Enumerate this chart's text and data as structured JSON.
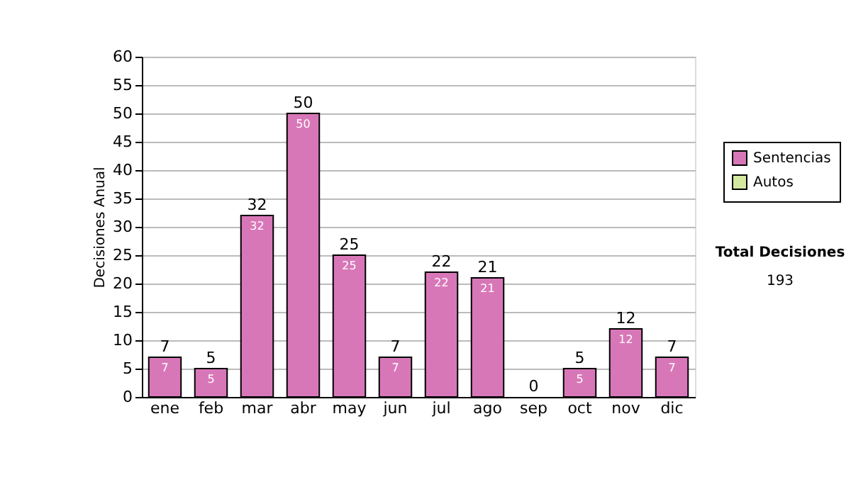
{
  "chart_data": {
    "type": "bar",
    "stacked": true,
    "ylabel": "Decisiones Anual",
    "categories": [
      "ene",
      "feb",
      "mar",
      "abr",
      "may",
      "jun",
      "jul",
      "ago",
      "sep",
      "oct",
      "nov",
      "dic"
    ],
    "series": [
      {
        "name": "Sentencias",
        "color": "#d877b8",
        "values": [
          7,
          5,
          32,
          50,
          25,
          7,
          22,
          21,
          0,
          5,
          12,
          7
        ],
        "value_labels": [
          "7",
          "5",
          "32",
          "50",
          "25",
          "7",
          "22",
          "21",
          null,
          "5",
          "12",
          "7"
        ]
      },
      {
        "name": "Autos",
        "color": "#d4e8a0",
        "values": [
          0,
          0,
          0,
          0,
          0,
          0,
          0,
          0,
          0,
          0,
          0,
          0
        ],
        "value_labels": [
          null,
          null,
          null,
          null,
          null,
          null,
          null,
          null,
          null,
          null,
          null,
          null
        ]
      }
    ],
    "totals": [
      "7",
      "5",
      "32",
      "50",
      "25",
      "7",
      "22",
      "21",
      "0",
      "5",
      "12",
      "7"
    ],
    "ylim": [
      0,
      60
    ],
    "yticks": [
      0,
      5,
      10,
      15,
      20,
      25,
      30,
      35,
      40,
      45,
      50,
      55,
      60
    ],
    "grid": "y",
    "legend": "right",
    "annotations": [
      "Total Decisiones",
      "193"
    ]
  }
}
